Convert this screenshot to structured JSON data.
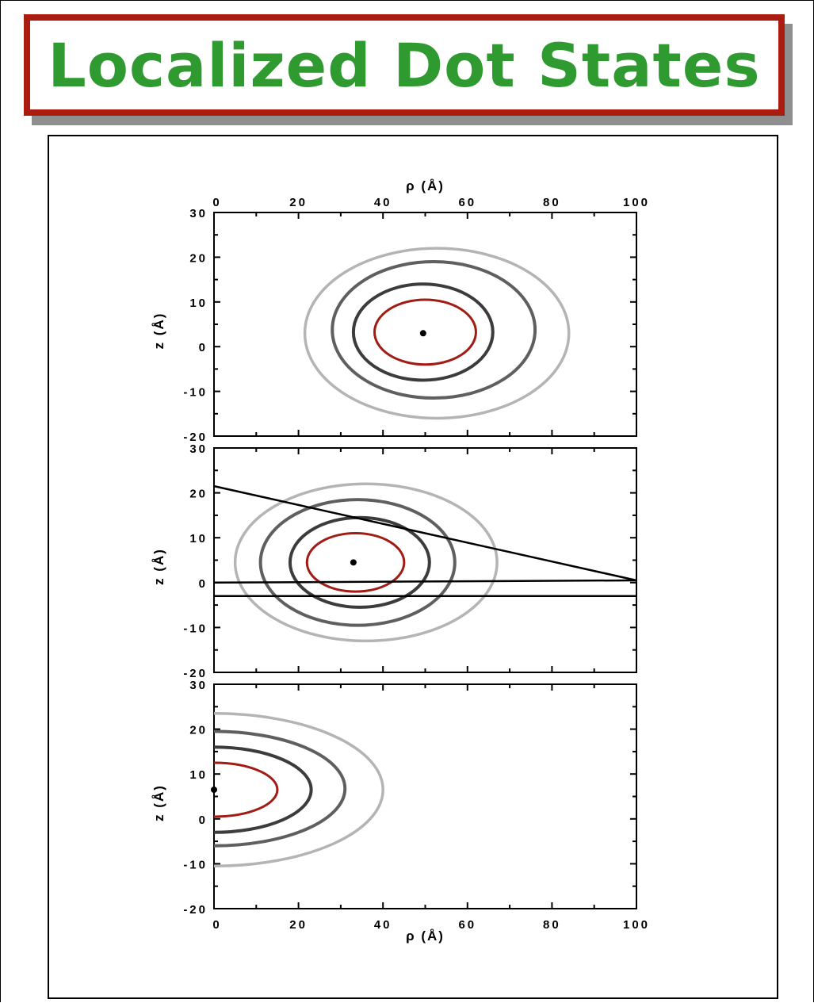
{
  "slide": {
    "title": "Localized Dot States"
  },
  "colors": {
    "title_text": "#2f9a2f",
    "title_border": "#ab1c10",
    "inner_contour": "#a01c14",
    "contour_dark": "#3c3c3c",
    "contour_mid": "#5f5f5f",
    "contour_light": "#b4b4b4",
    "boundary_line": "#000000"
  },
  "chart_data": [
    {
      "type": "contour",
      "panel": "top",
      "xlabel": "ρ (Å)",
      "x_axis_position": "top",
      "ylabel": "z (Å)",
      "xlim": [
        0,
        100
      ],
      "ylim": [
        -20,
        30
      ],
      "xticks": [
        "0",
        "20",
        "40",
        "60",
        "80",
        "100"
      ],
      "yticks": [
        "-20",
        "-10",
        "0",
        "10",
        "20",
        "30"
      ],
      "center": {
        "x": 49.5,
        "y": 3
      },
      "contours": [
        {
          "level": "inner",
          "color": "#a01c14",
          "x_range": [
            38,
            62
          ],
          "y_range": [
            -4,
            10.5
          ]
        },
        {
          "level": "second",
          "color": "#3c3c3c",
          "x_range": [
            33,
            66
          ],
          "y_range": [
            -7.5,
            14
          ]
        },
        {
          "level": "third",
          "color": "#5f5f5f",
          "x_range": [
            28,
            76
          ],
          "y_range": [
            -11.5,
            19
          ]
        },
        {
          "level": "outer",
          "color": "#b4b4b4",
          "x_range": [
            21.5,
            84
          ],
          "y_range": [
            -16,
            22
          ]
        }
      ]
    },
    {
      "type": "contour",
      "panel": "middle",
      "ylabel": "z (Å)",
      "xlim": [
        0,
        100
      ],
      "ylim": [
        -20,
        30
      ],
      "yticks": [
        "-20",
        "-10",
        "0",
        "10",
        "20",
        "30"
      ],
      "center": {
        "x": 33,
        "y": 4.5
      },
      "contours": [
        {
          "level": "inner",
          "color": "#a01c14",
          "x_range": [
            22,
            45
          ],
          "y_range": [
            -2,
            11
          ]
        },
        {
          "level": "second",
          "color": "#3c3c3c",
          "x_range": [
            18,
            51
          ],
          "y_range": [
            -5.5,
            14.5
          ]
        },
        {
          "level": "third",
          "color": "#5f5f5f",
          "x_range": [
            11,
            57
          ],
          "y_range": [
            -9.5,
            18.5
          ]
        },
        {
          "level": "outer",
          "color": "#b4b4b4",
          "x_range": [
            5,
            67
          ],
          "y_range": [
            -13,
            22
          ]
        }
      ],
      "boundary_lines": [
        {
          "from": [
            0,
            21.5
          ],
          "to": [
            100,
            0.5
          ]
        },
        {
          "from": [
            0,
            0
          ],
          "to": [
            100,
            0.5
          ]
        },
        {
          "from": [
            0,
            -3
          ],
          "to": [
            100,
            -3
          ]
        }
      ]
    },
    {
      "type": "contour",
      "panel": "bottom",
      "xlabel": "ρ (Å)",
      "ylabel": "z (Å)",
      "xlim": [
        0,
        100
      ],
      "ylim": [
        -20,
        30
      ],
      "xticks": [
        "0",
        "20",
        "40",
        "60",
        "80",
        "100"
      ],
      "yticks": [
        "-20",
        "-10",
        "0",
        "10",
        "20",
        "30"
      ],
      "center": {
        "x": 0,
        "y": 6.5
      },
      "contours": [
        {
          "level": "inner",
          "color": "#a01c14",
          "x_max": 15,
          "y_range": [
            0.5,
            12.5
          ]
        },
        {
          "level": "second",
          "color": "#3c3c3c",
          "x_max": 23,
          "y_range": [
            -3,
            16
          ]
        },
        {
          "level": "third",
          "color": "#5f5f5f",
          "x_max": 31,
          "y_range": [
            -6,
            19.5
          ]
        },
        {
          "level": "outer",
          "color": "#b4b4b4",
          "x_max": 40,
          "y_range": [
            -10.5,
            23.5
          ]
        }
      ]
    }
  ]
}
